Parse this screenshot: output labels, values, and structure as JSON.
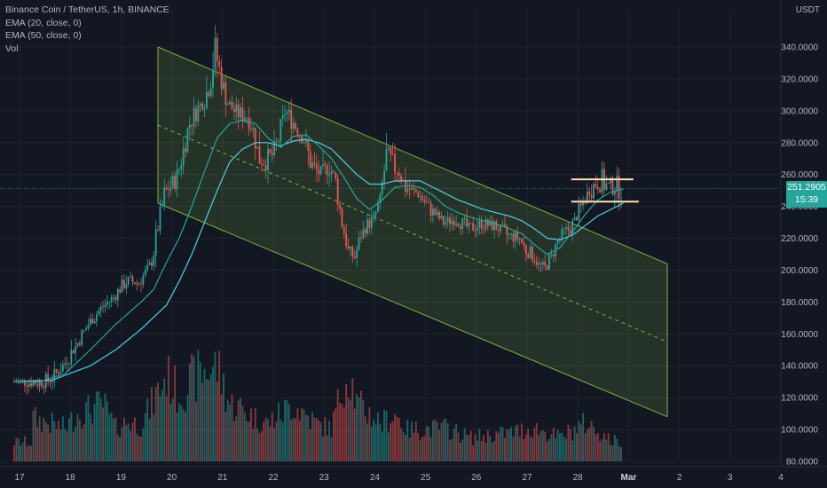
{
  "legend": {
    "symbol_line": "Binance Coin / TetherUS, 1h, BINANCE",
    "ema20_label": "EMA (20, close, 0)",
    "ema50_label": "EMA (50, close, 0)",
    "vol_label": "Vol"
  },
  "corner": {
    "currency_label": "USDT"
  },
  "price_tag": {
    "last_price": "251.2905",
    "countdown": "15:39"
  },
  "colors": {
    "background": "#131722",
    "up": "#26a69a",
    "down": "#ef5350",
    "ema20": "#26a69a",
    "ema50": "#4dd0e1",
    "channel_fill": "#8bc34a",
    "rectangle_lines": "#ffe0b2"
  },
  "chart_data": {
    "type": "candlestick",
    "title": "Binance Coin / TetherUS, 1h, BINANCE",
    "y_ticks": [
      "340.0000",
      "320.0000",
      "300.0000",
      "280.0000",
      "260.0000",
      "240.0000",
      "220.0000",
      "200.0000",
      "180.0000",
      "160.0000",
      "140.0000",
      "120.0000",
      "100.0000",
      "80.0000"
    ],
    "y_tick_values": [
      340,
      320,
      300,
      280,
      260,
      240,
      220,
      200,
      180,
      160,
      140,
      120,
      100,
      80
    ],
    "x_ticks": [
      "17",
      "18",
      "19",
      "20",
      "21",
      "22",
      "23",
      "24",
      "25",
      "26",
      "27",
      "28",
      "Mar",
      "2",
      "3",
      "4"
    ],
    "bold_x_ticks": [
      "Mar"
    ],
    "ylim": [
      80,
      350
    ],
    "grid": true,
    "series": [
      {
        "name": "EMA (20, close, 0)",
        "kind": "line"
      },
      {
        "name": "EMA (50, close, 0)",
        "kind": "line"
      },
      {
        "name": "Vol",
        "kind": "volume"
      }
    ],
    "price_path": [
      [
        0,
        130
      ],
      [
        1,
        130
      ],
      [
        2,
        129
      ],
      [
        3,
        131
      ],
      [
        4,
        140
      ],
      [
        5,
        152
      ],
      [
        6,
        166
      ],
      [
        7,
        176
      ],
      [
        8,
        183
      ],
      [
        9,
        193
      ],
      [
        10,
        192
      ],
      [
        11,
        205
      ],
      [
        12,
        248
      ],
      [
        13,
        258
      ],
      [
        14,
        292
      ],
      [
        15,
        306
      ],
      [
        15.5,
        314
      ],
      [
        16,
        338
      ],
      [
        16.5,
        320
      ],
      [
        17,
        305
      ],
      [
        17.5,
        300
      ],
      [
        18,
        298
      ],
      [
        18.5,
        297
      ],
      [
        19,
        288
      ],
      [
        19.5,
        270
      ],
      [
        20,
        268
      ],
      [
        20.5,
        272
      ],
      [
        21,
        282
      ],
      [
        21.5,
        300
      ],
      [
        22,
        295
      ],
      [
        22.5,
        288
      ],
      [
        23,
        282
      ],
      [
        23.5,
        268
      ],
      [
        24,
        262
      ],
      [
        24.5,
        260
      ],
      [
        25,
        266
      ],
      [
        25.5,
        255
      ],
      [
        26,
        230
      ],
      [
        26.5,
        212
      ],
      [
        27,
        208
      ],
      [
        27.5,
        222
      ],
      [
        28,
        228
      ],
      [
        28.5,
        232
      ],
      [
        29,
        244
      ],
      [
        29.5,
        272
      ],
      [
        30,
        266
      ],
      [
        30.5,
        262
      ],
      [
        31,
        252
      ],
      [
        31.5,
        250
      ],
      [
        32,
        248
      ],
      [
        33,
        238
      ],
      [
        34,
        230
      ],
      [
        35,
        232
      ],
      [
        36,
        226
      ],
      [
        37,
        229
      ],
      [
        38,
        228
      ],
      [
        39,
        222
      ],
      [
        40,
        220
      ],
      [
        40.5,
        212
      ],
      [
        41,
        210
      ],
      [
        41.5,
        203
      ],
      [
        42,
        201
      ],
      [
        42.5,
        208
      ],
      [
        43,
        218
      ],
      [
        43.5,
        224
      ],
      [
        44,
        226
      ],
      [
        44.5,
        234
      ],
      [
        45,
        242
      ],
      [
        45.5,
        250
      ],
      [
        46,
        254
      ],
      [
        46.5,
        256
      ],
      [
        47,
        252
      ],
      [
        47.5,
        254
      ],
      [
        48,
        251.3
      ]
    ],
    "ema20_path": [
      [
        0,
        130
      ],
      [
        2,
        130
      ],
      [
        4,
        135
      ],
      [
        6,
        150
      ],
      [
        8,
        166
      ],
      [
        10,
        180
      ],
      [
        11,
        188
      ],
      [
        12,
        205
      ],
      [
        13,
        220
      ],
      [
        14,
        240
      ],
      [
        15,
        262
      ],
      [
        16,
        283
      ],
      [
        17,
        292
      ],
      [
        18,
        294
      ],
      [
        19,
        292
      ],
      [
        20,
        283
      ],
      [
        21,
        277
      ],
      [
        22,
        284
      ],
      [
        23,
        285
      ],
      [
        24,
        278
      ],
      [
        25,
        270
      ],
      [
        26,
        258
      ],
      [
        27,
        245
      ],
      [
        28,
        238
      ],
      [
        29,
        244
      ],
      [
        30,
        252
      ],
      [
        31,
        253
      ],
      [
        32,
        252
      ],
      [
        33,
        247
      ],
      [
        34,
        240
      ],
      [
        35,
        236
      ],
      [
        36,
        233
      ],
      [
        37,
        231
      ],
      [
        38,
        229
      ],
      [
        39,
        226
      ],
      [
        40,
        223
      ],
      [
        41,
        216
      ],
      [
        42,
        210
      ],
      [
        43,
        214
      ],
      [
        44,
        224
      ],
      [
        45,
        235
      ],
      [
        46,
        244
      ],
      [
        47,
        249
      ],
      [
        48,
        251
      ]
    ],
    "ema50_path": [
      [
        0,
        130
      ],
      [
        3,
        131
      ],
      [
        6,
        140
      ],
      [
        8,
        150
      ],
      [
        10,
        163
      ],
      [
        12,
        178
      ],
      [
        13,
        193
      ],
      [
        14,
        210
      ],
      [
        15,
        230
      ],
      [
        16,
        250
      ],
      [
        17,
        268
      ],
      [
        18,
        276
      ],
      [
        19,
        280
      ],
      [
        20,
        280
      ],
      [
        21,
        278
      ],
      [
        22,
        281
      ],
      [
        23,
        282
      ],
      [
        24,
        280
      ],
      [
        25,
        276
      ],
      [
        26,
        268
      ],
      [
        27,
        260
      ],
      [
        28,
        254
      ],
      [
        29,
        254
      ],
      [
        30,
        256
      ],
      [
        31,
        256
      ],
      [
        32,
        256
      ],
      [
        33,
        252
      ],
      [
        34,
        248
      ],
      [
        35,
        244
      ],
      [
        36,
        241
      ],
      [
        37,
        238
      ],
      [
        38,
        236
      ],
      [
        39,
        234
      ],
      [
        40,
        231
      ],
      [
        41,
        226
      ],
      [
        42,
        220
      ],
      [
        43,
        219
      ],
      [
        44,
        222
      ],
      [
        45,
        228
      ],
      [
        46,
        234
      ],
      [
        47,
        238
      ],
      [
        48,
        242
      ]
    ],
    "parallel_channel": {
      "upper_line": [
        [
          20,
          340
        ],
        [
          48,
          204
        ]
      ],
      "lower_line": [
        [
          20,
          242
        ],
        [
          48,
          108
        ]
      ],
      "median_line": [
        [
          20,
          291
        ],
        [
          48,
          155
        ]
      ]
    },
    "rectangle_pattern": {
      "top_value": 257,
      "bottom_value": 243,
      "x_start": 43.9,
      "x_end": 48.8
    },
    "volume_scale": [
      0,
      1
    ],
    "volume_peaks": [
      [
        1.5,
        0.45
      ],
      [
        4,
        0.35
      ],
      [
        5,
        0.5
      ],
      [
        6,
        0.55
      ],
      [
        7,
        0.6
      ],
      [
        8,
        0.35
      ],
      [
        9,
        0.42
      ],
      [
        10,
        0.38
      ],
      [
        12,
        0.9
      ],
      [
        13,
        0.7
      ],
      [
        14,
        0.85
      ],
      [
        15,
        0.95
      ],
      [
        16,
        1.0
      ],
      [
        17,
        0.6
      ],
      [
        18,
        0.55
      ],
      [
        19,
        0.45
      ],
      [
        20,
        0.4
      ],
      [
        22,
        0.6
      ],
      [
        24,
        0.38
      ],
      [
        25,
        0.35
      ],
      [
        26,
        0.85
      ],
      [
        26.5,
        0.9
      ],
      [
        27,
        0.6
      ],
      [
        29,
        0.4
      ],
      [
        30,
        0.5
      ],
      [
        31,
        0.33
      ],
      [
        34,
        0.35
      ],
      [
        36,
        0.25
      ],
      [
        39,
        0.3
      ],
      [
        41,
        0.35
      ],
      [
        43,
        0.25
      ],
      [
        45,
        0.4
      ],
      [
        46,
        0.32
      ],
      [
        47,
        0.22
      ],
      [
        48,
        0.2
      ]
    ],
    "last_price": 251.2905
  }
}
